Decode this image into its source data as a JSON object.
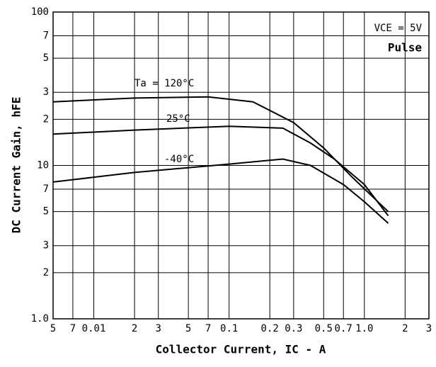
{
  "chart_data": {
    "type": "line",
    "x_label": "Collector Current, IC - A",
    "y_label": "DC Current Gain, hFE",
    "annotations": [
      "VCE = 5V",
      "Pulse"
    ],
    "xscale": "log",
    "yscale": "log",
    "grid": true,
    "xlim": [
      0.005,
      3
    ],
    "ylim": [
      1,
      100
    ],
    "xticks": [
      {
        "value": 0.005,
        "label": "5"
      },
      {
        "value": 0.007,
        "label": "7"
      },
      0.01,
      {
        "value": 0.02,
        "label": "2"
      },
      {
        "value": 0.03,
        "label": "3"
      },
      {
        "value": 0.05,
        "label": "5"
      },
      {
        "value": 0.07,
        "label": "7"
      },
      0.1,
      0.2,
      0.3,
      0.5,
      0.7,
      {
        "value": 1,
        "label": "1.0"
      },
      2,
      3
    ],
    "yticks": [
      {
        "value": 1,
        "label": "1.0"
      },
      2,
      3,
      5,
      7,
      10,
      {
        "value": 20,
        "label": "2"
      },
      {
        "value": 30,
        "label": "3"
      },
      {
        "value": 50,
        "label": "5"
      },
      {
        "value": 70,
        "label": "7"
      },
      100
    ],
    "series": [
      {
        "name": "Ta = 120°C",
        "color": "#000000",
        "x": [
          0.005,
          0.02,
          0.07,
          0.15,
          0.3,
          0.5,
          0.8,
          1.5
        ],
        "values": [
          26,
          27.5,
          28,
          26,
          19,
          13,
          8.5,
          5
        ]
      },
      {
        "name": "25°C",
        "color": "#000000",
        "x": [
          0.005,
          0.02,
          0.1,
          0.25,
          0.4,
          0.6,
          1.0,
          1.5
        ],
        "values": [
          16,
          17,
          18,
          17.5,
          14,
          11,
          7.5,
          4.7
        ]
      },
      {
        "name": "-40°C",
        "color": "#000000",
        "x": [
          0.005,
          0.02,
          0.1,
          0.25,
          0.4,
          0.7,
          1.0,
          1.5
        ],
        "values": [
          7.8,
          9,
          10.2,
          11,
          10,
          7.5,
          5.8,
          4.2
        ]
      }
    ]
  }
}
